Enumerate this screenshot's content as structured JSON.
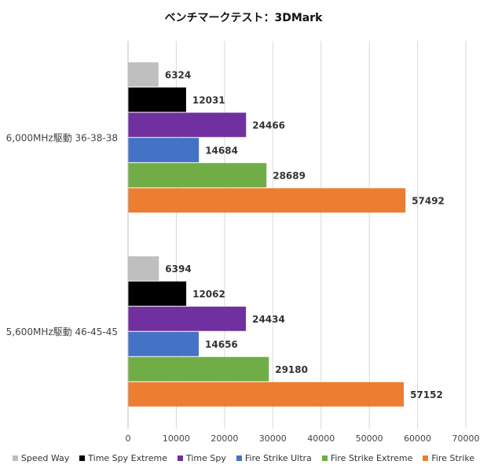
{
  "chart_data": {
    "type": "bar",
    "orientation": "horizontal",
    "title": "ベンチマークテスト：3DMark",
    "categories": [
      "6,000MHz駆動 36-38-38",
      "5,600MHz駆動 46-45-45"
    ],
    "xlim": [
      0,
      70000
    ],
    "xticks": [
      0,
      10000,
      20000,
      30000,
      40000,
      50000,
      60000,
      70000
    ],
    "grid": true,
    "legend_position": "bottom",
    "series": [
      {
        "name": "Speed Way",
        "color": "#bfbfbf",
        "values": [
          6324,
          6394
        ]
      },
      {
        "name": "Time Spy Extreme",
        "color": "#000000",
        "values": [
          12031,
          12062
        ]
      },
      {
        "name": "Time Spy",
        "color": "#7030a0",
        "values": [
          24466,
          24434
        ]
      },
      {
        "name": "Fire Strike Ultra",
        "color": "#4472c4",
        "values": [
          14684,
          14656
        ]
      },
      {
        "name": "Fire Strike Extreme",
        "color": "#70ad47",
        "values": [
          28689,
          29180
        ]
      },
      {
        "name": "Fire Strike",
        "color": "#ed7d31",
        "values": [
          57492,
          57152
        ]
      }
    ]
  }
}
